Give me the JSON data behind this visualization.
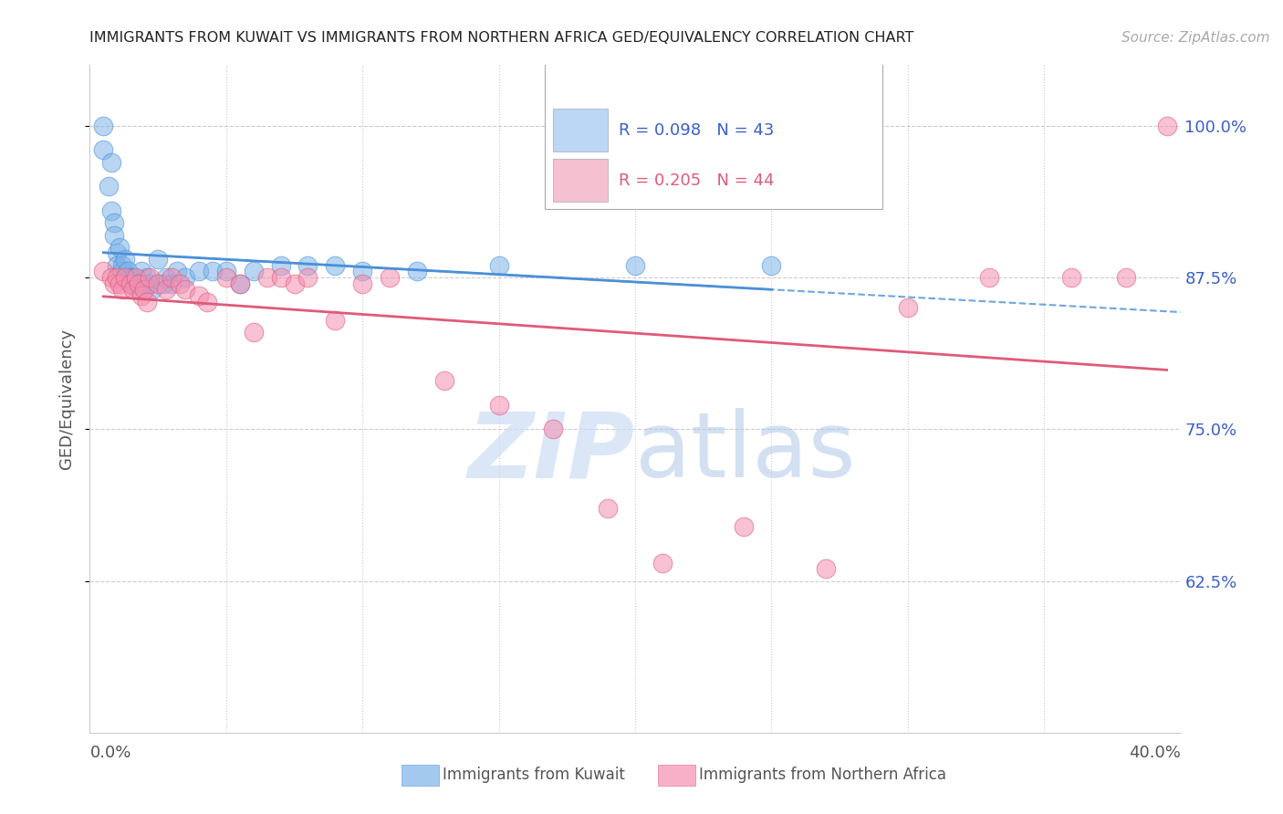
{
  "title": "IMMIGRANTS FROM KUWAIT VS IMMIGRANTS FROM NORTHERN AFRICA GED/EQUIVALENCY CORRELATION CHART",
  "source": "Source: ZipAtlas.com",
  "ylabel": "GED/Equivalency",
  "ytick_labels": [
    "100.0%",
    "87.5%",
    "75.0%",
    "62.5%"
  ],
  "ytick_values": [
    1.0,
    0.875,
    0.75,
    0.625
  ],
  "xlim": [
    0.0,
    0.4
  ],
  "ylim": [
    0.5,
    1.05
  ],
  "color_kuwait": "#7eb3e8",
  "color_n_africa": "#f48fb1",
  "trendline_kuwait_color": "#4a90d9",
  "trendline_n_africa_color": "#e05a7a",
  "watermark_zip": "ZIP",
  "watermark_atlas": "atlas",
  "kuwait_x": [
    0.005,
    0.005,
    0.007,
    0.008,
    0.008,
    0.009,
    0.009,
    0.01,
    0.01,
    0.011,
    0.012,
    0.012,
    0.013,
    0.014,
    0.015,
    0.015,
    0.016,
    0.017,
    0.018,
    0.019,
    0.02,
    0.021,
    0.022,
    0.023,
    0.025,
    0.027,
    0.028,
    0.03,
    0.032,
    0.035,
    0.04,
    0.045,
    0.05,
    0.055,
    0.06,
    0.07,
    0.08,
    0.09,
    0.1,
    0.12,
    0.15,
    0.2,
    0.25
  ],
  "kuwait_y": [
    1.0,
    0.98,
    0.95,
    0.97,
    0.93,
    0.92,
    0.91,
    0.895,
    0.885,
    0.9,
    0.885,
    0.88,
    0.89,
    0.88,
    0.875,
    0.87,
    0.875,
    0.87,
    0.865,
    0.88,
    0.87,
    0.875,
    0.87,
    0.865,
    0.89,
    0.87,
    0.875,
    0.87,
    0.88,
    0.875,
    0.88,
    0.88,
    0.88,
    0.87,
    0.88,
    0.885,
    0.885,
    0.885,
    0.88,
    0.88,
    0.885,
    0.885,
    0.885
  ],
  "n_africa_x": [
    0.005,
    0.008,
    0.009,
    0.01,
    0.011,
    0.012,
    0.013,
    0.015,
    0.016,
    0.017,
    0.018,
    0.019,
    0.02,
    0.021,
    0.022,
    0.025,
    0.028,
    0.03,
    0.033,
    0.035,
    0.04,
    0.043,
    0.05,
    0.055,
    0.06,
    0.065,
    0.07,
    0.075,
    0.08,
    0.09,
    0.1,
    0.11,
    0.13,
    0.15,
    0.17,
    0.19,
    0.21,
    0.24,
    0.27,
    0.3,
    0.33,
    0.36,
    0.38,
    0.395
  ],
  "n_africa_y": [
    0.88,
    0.875,
    0.87,
    0.875,
    0.87,
    0.865,
    0.875,
    0.87,
    0.865,
    0.875,
    0.87,
    0.86,
    0.865,
    0.855,
    0.875,
    0.87,
    0.865,
    0.875,
    0.87,
    0.865,
    0.86,
    0.855,
    0.875,
    0.87,
    0.83,
    0.875,
    0.875,
    0.87,
    0.875,
    0.84,
    0.87,
    0.875,
    0.79,
    0.77,
    0.75,
    0.685,
    0.64,
    0.67,
    0.635,
    0.85,
    0.875,
    0.875,
    0.875,
    1.0
  ],
  "legend_r1": "R = 0.098",
  "legend_n1": "N = 43",
  "legend_r2": "R = 0.205",
  "legend_n2": "N = 44",
  "label_kuwait": "Immigrants from Kuwait",
  "label_n_africa": "Immigrants from Northern Africa"
}
